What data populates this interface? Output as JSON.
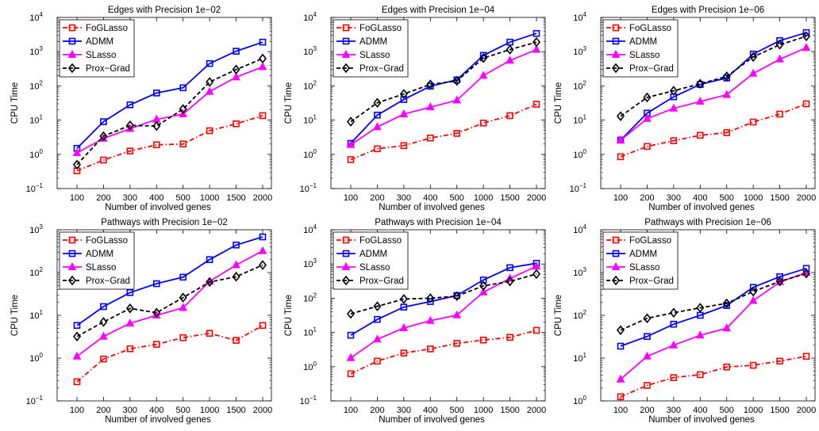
{
  "chart_data": [
    {
      "type": "line",
      "title": "Edges with Precision 1e−02",
      "xlabel": "Number of involved genes",
      "ylabel": "CPU Time",
      "categories": [
        "100",
        "200",
        "300",
        "400",
        "500",
        "1000",
        "1500",
        "2000"
      ],
      "yscale": "log",
      "ylim": [
        0.1,
        10000
      ],
      "yticks": [
        0.1,
        1,
        10,
        100,
        1000,
        10000
      ],
      "yticklabels": [
        [
          "10",
          "−1"
        ],
        [
          "10",
          "0"
        ],
        [
          "10",
          "1"
        ],
        [
          "10",
          "2"
        ],
        [
          "10",
          "3"
        ],
        [
          "10",
          "4"
        ]
      ],
      "legend": "top-left",
      "series": [
        {
          "name": "FoGLasso",
          "values": [
            0.33,
            0.68,
            1.25,
            1.9,
            2.0,
            4.9,
            7.8,
            13.5
          ]
        },
        {
          "name": "ADMM",
          "values": [
            1.5,
            9.0,
            28,
            62,
            88,
            450,
            1030,
            1900
          ]
        },
        {
          "name": "SLasso",
          "values": [
            1.1,
            2.9,
            5.6,
            10.5,
            15,
            68,
            180,
            360
          ]
        },
        {
          "name": "Prox−Grad",
          "values": [
            0.5,
            3.4,
            7.0,
            6.7,
            21,
            130,
            300,
            630
          ]
        }
      ]
    },
    {
      "type": "line",
      "title": "Edges with Precision 1e−04",
      "xlabel": "Number of involved genes",
      "ylabel": "CPU Time",
      "categories": [
        "100",
        "200",
        "300",
        "400",
        "500",
        "1000",
        "1500",
        "2000"
      ],
      "yscale": "log",
      "ylim": [
        0.1,
        10000
      ],
      "yticks": [
        0.1,
        1,
        10,
        100,
        1000,
        10000
      ],
      "yticklabels": [
        [
          "10",
          "−1"
        ],
        [
          "10",
          "0"
        ],
        [
          "10",
          "1"
        ],
        [
          "10",
          "2"
        ],
        [
          "10",
          "3"
        ],
        [
          "10",
          "4"
        ]
      ],
      "legend": "top-left",
      "series": [
        {
          "name": "FoGLasso",
          "values": [
            0.7,
            1.45,
            1.8,
            3.0,
            4.1,
            8.2,
            13.5,
            29
          ]
        },
        {
          "name": "ADMM",
          "values": [
            2.1,
            14,
            40,
            98,
            150,
            780,
            1900,
            3400
          ]
        },
        {
          "name": "SLasso",
          "values": [
            1.9,
            6.3,
            15,
            24,
            38,
            200,
            550,
            1150
          ]
        },
        {
          "name": "Prox−Grad",
          "values": [
            9.0,
            32,
            58,
            110,
            140,
            650,
            1150,
            1900
          ]
        }
      ]
    },
    {
      "type": "line",
      "title": "Edges with Precision 1e−06",
      "xlabel": "Number of involved genes",
      "ylabel": "CPU Time",
      "categories": [
        "100",
        "200",
        "300",
        "400",
        "500",
        "1000",
        "1500",
        "2000"
      ],
      "yscale": "log",
      "ylim": [
        0.1,
        10000
      ],
      "yticks": [
        0.1,
        1,
        10,
        100,
        1000,
        10000
      ],
      "yticklabels": [
        [
          "10",
          "−1"
        ],
        [
          "10",
          "0"
        ],
        [
          "10",
          "1"
        ],
        [
          "10",
          "2"
        ],
        [
          "10",
          "3"
        ],
        [
          "10",
          "4"
        ]
      ],
      "legend": "top-left",
      "series": [
        {
          "name": "FoGLasso",
          "values": [
            0.85,
            1.7,
            2.5,
            3.6,
            4.3,
            8.8,
            15,
            30
          ]
        },
        {
          "name": "ADMM",
          "values": [
            2.6,
            16,
            48,
            110,
            170,
            850,
            2100,
            3600
          ]
        },
        {
          "name": "SLasso",
          "values": [
            2.6,
            11,
            22,
            35,
            55,
            230,
            600,
            1300
          ]
        },
        {
          "name": "Prox−Grad",
          "values": [
            13,
            46,
            72,
            115,
            190,
            700,
            1600,
            2800
          ]
        }
      ]
    },
    {
      "type": "line",
      "title": "Pathways with Precision 1e−02",
      "xlabel": "Number of involved genes",
      "ylabel": "CPU Time",
      "categories": [
        "100",
        "200",
        "300",
        "400",
        "500",
        "1000",
        "1500",
        "2000"
      ],
      "yscale": "log",
      "ylim": [
        0.1,
        1000
      ],
      "yticks": [
        0.1,
        1,
        10,
        100,
        1000
      ],
      "yticklabels": [
        [
          "10",
          "−1"
        ],
        [
          "10",
          "0"
        ],
        [
          "10",
          "1"
        ],
        [
          "10",
          "2"
        ],
        [
          "10",
          "3"
        ]
      ],
      "legend": "top-left",
      "series": [
        {
          "name": "FoGLasso",
          "values": [
            0.28,
            0.95,
            1.65,
            2.1,
            3.0,
            3.8,
            2.6,
            5.8
          ]
        },
        {
          "name": "ADMM",
          "values": [
            5.8,
            16,
            34,
            55,
            78,
            200,
            440,
            680
          ]
        },
        {
          "name": "SLasso",
          "values": [
            1.1,
            3.2,
            6.5,
            10,
            15,
            62,
            150,
            320
          ]
        },
        {
          "name": "Prox−Grad",
          "values": [
            3.2,
            7.0,
            14.5,
            11.5,
            26,
            60,
            80,
            150
          ]
        }
      ]
    },
    {
      "type": "line",
      "title": "Pathways with Precision 1e−04",
      "xlabel": "Number of involved genes",
      "ylabel": "CPU Time",
      "categories": [
        "100",
        "200",
        "300",
        "400",
        "500",
        "1000",
        "1500",
        "2000"
      ],
      "yscale": "log",
      "ylim": [
        0.1,
        10000
      ],
      "yticks": [
        0.1,
        1,
        10,
        100,
        1000,
        10000
      ],
      "yticklabels": [
        [
          "10",
          "−1"
        ],
        [
          "10",
          "0"
        ],
        [
          "10",
          "1"
        ],
        [
          "10",
          "2"
        ],
        [
          "10",
          "3"
        ],
        [
          "10",
          "4"
        ]
      ],
      "legend": "top-left",
      "series": [
        {
          "name": "FoGLasso",
          "values": [
            0.62,
            1.45,
            2.5,
            3.3,
            4.8,
            6.0,
            7.2,
            11.5
          ]
        },
        {
          "name": "ADMM",
          "values": [
            8.3,
            24,
            55,
            80,
            120,
            340,
            780,
            1050
          ]
        },
        {
          "name": "SLasso",
          "values": [
            1.8,
            6.3,
            13.5,
            22,
            32,
            150,
            380,
            850
          ]
        },
        {
          "name": "Prox−Grad",
          "values": [
            35,
            58,
            95,
            100,
            115,
            230,
            310,
            510
          ]
        }
      ]
    },
    {
      "type": "line",
      "title": "Pathways with Precision 1e−06",
      "xlabel": "Number of involved genes",
      "ylabel": "CPU Time",
      "categories": [
        "100",
        "200",
        "300",
        "400",
        "500",
        "1000",
        "1500",
        "2000"
      ],
      "yscale": "log",
      "ylim": [
        1,
        10000
      ],
      "yticks": [
        1,
        10,
        100,
        1000,
        10000
      ],
      "yticklabels": [
        [
          "10",
          "0"
        ],
        [
          "10",
          "1"
        ],
        [
          "10",
          "2"
        ],
        [
          "10",
          "3"
        ],
        [
          "10",
          "4"
        ]
      ],
      "legend": "top-left",
      "series": [
        {
          "name": "FoGLasso",
          "values": [
            1.25,
            2.3,
            3.5,
            4.1,
            6.2,
            6.8,
            8.5,
            11
          ]
        },
        {
          "name": "ADMM",
          "values": [
            19,
            32,
            62,
            100,
            170,
            450,
            800,
            1250
          ]
        },
        {
          "name": "SLasso",
          "values": [
            3.2,
            11,
            20,
            34,
            50,
            220,
            600,
            1000
          ]
        },
        {
          "name": "Prox−Grad",
          "values": [
            45,
            85,
            115,
            150,
            190,
            360,
            620,
            950
          ]
        }
      ]
    }
  ],
  "series_styles": [
    {
      "color": "#ff0000",
      "marker": "square",
      "line": "dashdot"
    },
    {
      "color": "#0000ff",
      "marker": "square",
      "line": "solid"
    },
    {
      "color": "#ff00ff",
      "marker": "triangle",
      "line": "solid"
    },
    {
      "color": "#000000",
      "marker": "diamond",
      "line": "dashed"
    }
  ]
}
